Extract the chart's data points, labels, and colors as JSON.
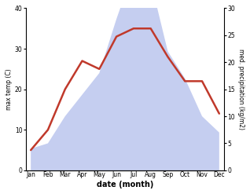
{
  "months": [
    "Jan",
    "Feb",
    "Mar",
    "Apr",
    "May",
    "Jun",
    "Jul",
    "Aug",
    "Sep",
    "Oct",
    "Nov",
    "Dec"
  ],
  "temperature": [
    5,
    10,
    20,
    27,
    25,
    33,
    35,
    35,
    28,
    22,
    22,
    14
  ],
  "precipitation": [
    4,
    5,
    10,
    14,
    18,
    28,
    37,
    35,
    22,
    17,
    10,
    7
  ],
  "temp_color": "#c0392b",
  "precip_fill_color": "#c5cef0",
  "background_color": "#ffffff",
  "ylabel_left": "max temp (C)",
  "ylabel_right": "med. precipitation (kg/m2)",
  "xlabel": "date (month)",
  "ylim_left": [
    0,
    40
  ],
  "ylim_right": [
    0,
    30
  ],
  "yticks_left": [
    0,
    10,
    20,
    30,
    40
  ],
  "yticks_right": [
    0,
    5,
    10,
    15,
    20,
    25,
    30
  ]
}
